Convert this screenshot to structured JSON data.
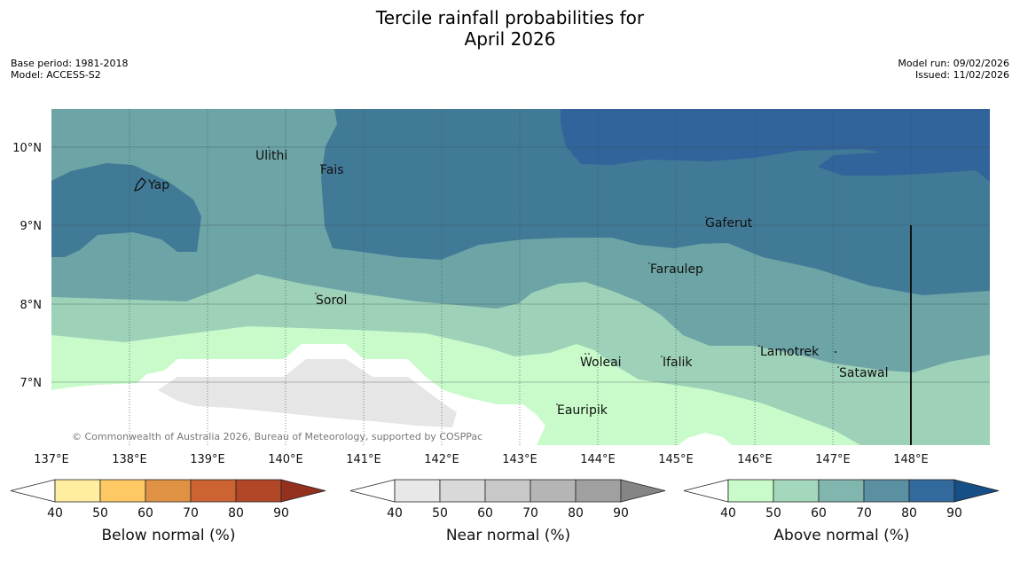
{
  "title": {
    "line1": "Tercile rainfall probabilities for",
    "line2": "April 2026"
  },
  "meta": {
    "base_period": "Base period: 1981-2018",
    "model": "Model: ACCESS-S2",
    "model_run": "Model run: 09/02/2026",
    "issued": "Issued: 11/02/2026"
  },
  "map": {
    "copyright": "© Commonwealth of Australia 2026, Bureau of Meteorology, supported by COSPPac",
    "lat_labels": [
      "10°N",
      "9°N",
      "8°N",
      "7°N"
    ],
    "lon_labels": [
      "137°E",
      "138°E",
      "139°E",
      "140°E",
      "141°E",
      "142°E",
      "143°E",
      "144°E",
      "145°E",
      "146°E",
      "147°E",
      "148°E"
    ],
    "places": [
      "Yap",
      "Ulithi",
      "Fais",
      "Gaferut",
      "Faraulep",
      "Sorol",
      "Woleai",
      "Ifalik",
      "Lamotrek",
      "Satawal",
      "Eauripik"
    ]
  },
  "legend": {
    "ticks": [
      "40",
      "50",
      "60",
      "70",
      "80",
      "90"
    ],
    "below": {
      "label": "Below normal (%)",
      "colors": [
        "#ffeea0",
        "#fec964",
        "#e09244",
        "#cd6233",
        "#b14726",
        "#93301e"
      ]
    },
    "near": {
      "label": "Near normal (%)",
      "colors": [
        "#e8e8e8",
        "#d9d9d9",
        "#c8c8c8",
        "#b5b5b5",
        "#a0a0a0",
        "#858585"
      ]
    },
    "above": {
      "label": "Above normal (%)",
      "colors": [
        "#c9fbca",
        "#a4d8bd",
        "#81b6ae",
        "#5a90a2",
        "#336a9d",
        "#164e86"
      ]
    }
  },
  "colors": {
    "class_40_50_above": "#c9fbca",
    "class_50_60_above": "#9ed2b8",
    "class_60_70_above": "#6da4a6",
    "class_70_80_above": "#417a97",
    "class_80_90_above": "#31649a",
    "class_40_50_near": "#e6e6e6"
  }
}
